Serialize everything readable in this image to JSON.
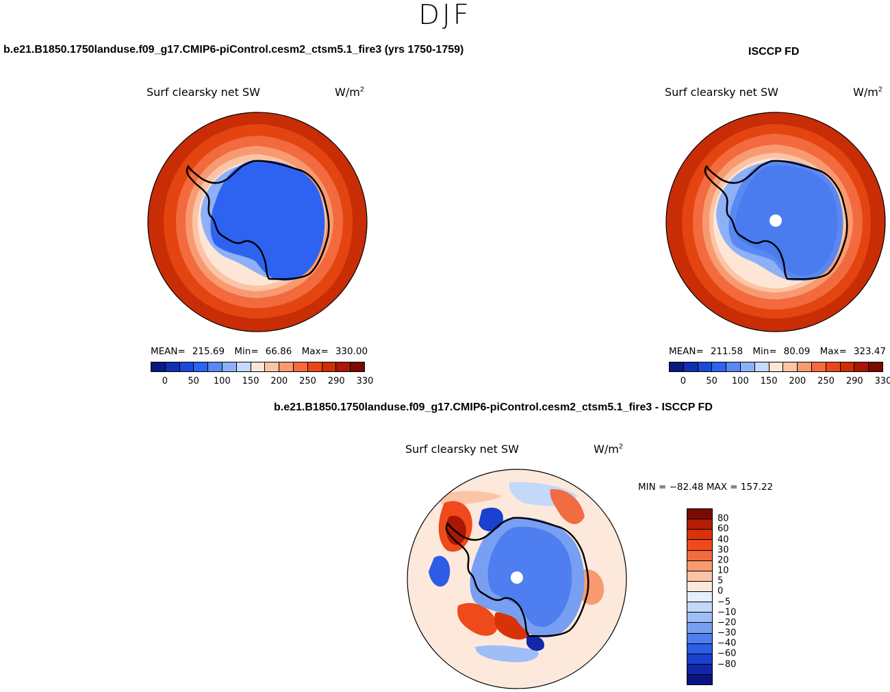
{
  "season": "DJF",
  "panels": [
    {
      "case": "b.e21.B1850.1750landuse.f09_g17.CMIP6-piControl.cesm2_ctsm5.1_fire3 (yrs 1750-1759)",
      "variable": "Surf clearsky net SW",
      "units": "W/m",
      "units_exp": "2",
      "stats": {
        "mean_label": "MEAN=",
        "mean": "215.69",
        "min_label": "Min=",
        "min": "66.86",
        "max_label": "Max=",
        "max": "330.00"
      }
    },
    {
      "case": "ISCCP FD",
      "variable": "Surf clearsky net SW",
      "units": "W/m",
      "units_exp": "2",
      "stats": {
        "mean_label": "MEAN=",
        "mean": "211.58",
        "min_label": "Min=",
        "min": "80.09",
        "max_label": "Max=",
        "max": "323.47"
      }
    },
    {
      "case": "b.e21.B1850.1750landuse.f09_g17.CMIP6-piControl.cesm2_ctsm5.1_fire3 - ISCCP FD",
      "variable": "Surf clearsky net SW",
      "units": "W/m",
      "units_exp": "2",
      "minmax": "MIN = −82.48  MAX = 157.22"
    }
  ],
  "colorbar_abs": {
    "colors": [
      "#0a1a80",
      "#0f2fb0",
      "#1a48d8",
      "#2e62f0",
      "#5a88f2",
      "#8eb0f6",
      "#c6dafb",
      "#fde6d6",
      "#fcc4a6",
      "#f89a70",
      "#f26a3e",
      "#e84818",
      "#cc2f06",
      "#a81804",
      "#7a0a02"
    ],
    "tick_labels": [
      "0",
      "50",
      "100",
      "150",
      "200",
      "250",
      "290",
      "330"
    ]
  },
  "colorbar_diff": {
    "colors": [
      "#7a0a02",
      "#b21d04",
      "#d83308",
      "#ee4a1c",
      "#f26c42",
      "#f89a70",
      "#fcc4a6",
      "#fde9dc",
      "#e4efff",
      "#c4d8fa",
      "#9fbdf6",
      "#789ff2",
      "#4e7ef0",
      "#2d5ce6",
      "#1a40d0",
      "#1028a8",
      "#0a1480"
    ],
    "labels": [
      "80",
      "60",
      "40",
      "30",
      "20",
      "10",
      "5",
      "0",
      "−5",
      "−10",
      "−20",
      "−30",
      "−40",
      "−60",
      "−80"
    ]
  }
}
